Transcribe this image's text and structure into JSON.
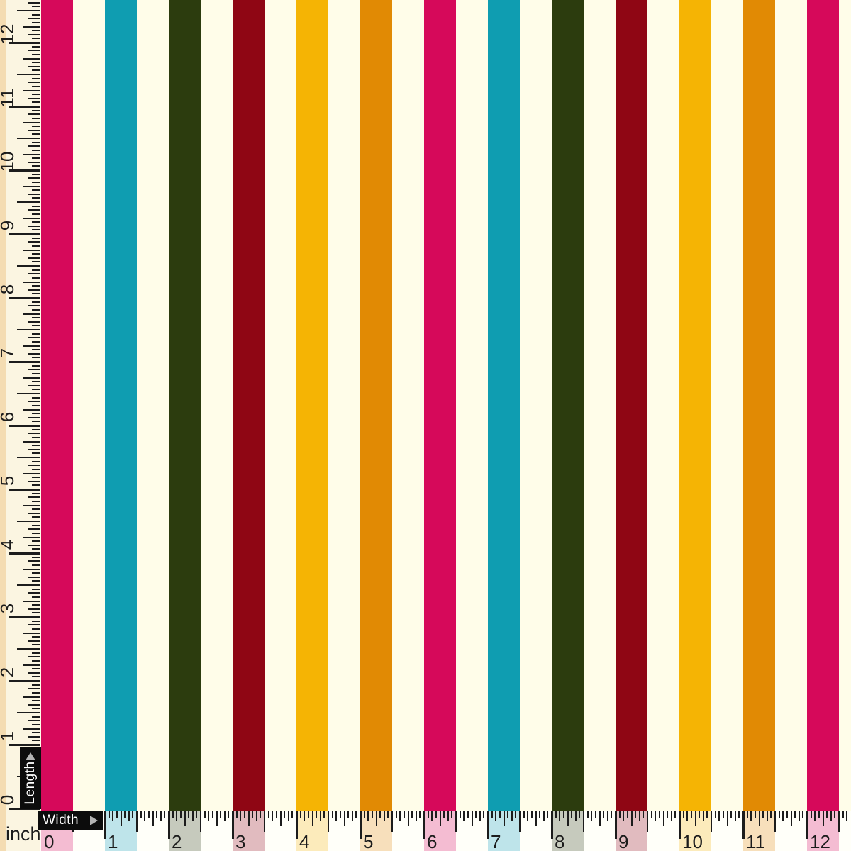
{
  "unit_label": "inch",
  "fabric": {
    "base_color_name": "cream",
    "base_color": "#FFFDE9",
    "stripe_width_inches": 0.5,
    "stripe_repeat_inches": 1,
    "stripe_colors": [
      {
        "name": "magenta-pink",
        "hex": "#D6095A"
      },
      {
        "name": "teal-blue",
        "hex": "#0F9DB1"
      },
      {
        "name": "dark-olive-green",
        "hex": "#2C3C0E"
      },
      {
        "name": "dark-red",
        "hex": "#8F0614"
      },
      {
        "name": "golden-yellow",
        "hex": "#F5B404"
      },
      {
        "name": "orange",
        "hex": "#E18A04"
      }
    ]
  },
  "length_ruler": {
    "label": "Length",
    "arrow_icon": "arrow-up",
    "numbers": [
      0,
      1,
      2,
      3,
      4,
      5,
      6,
      7,
      8,
      9,
      10,
      11,
      12
    ]
  },
  "width_ruler": {
    "label": "Width",
    "arrow_icon": "arrow-right",
    "numbers": [
      0,
      1,
      2,
      3,
      4,
      5,
      6,
      7,
      8,
      9,
      10,
      11,
      12
    ]
  },
  "colors": {
    "ruler_bg": "#FBF5E1",
    "ruler_edge_tan": "#F4DCB2",
    "tick": "#1C1C1C",
    "number_text": "#1C1C1C",
    "badge_bg": "#0C0C0C",
    "badge_text": "#FFFFFF",
    "badge_arrow": "#B3B3B3",
    "ruler_overlay": "rgba(255,255,255,0.73)"
  }
}
